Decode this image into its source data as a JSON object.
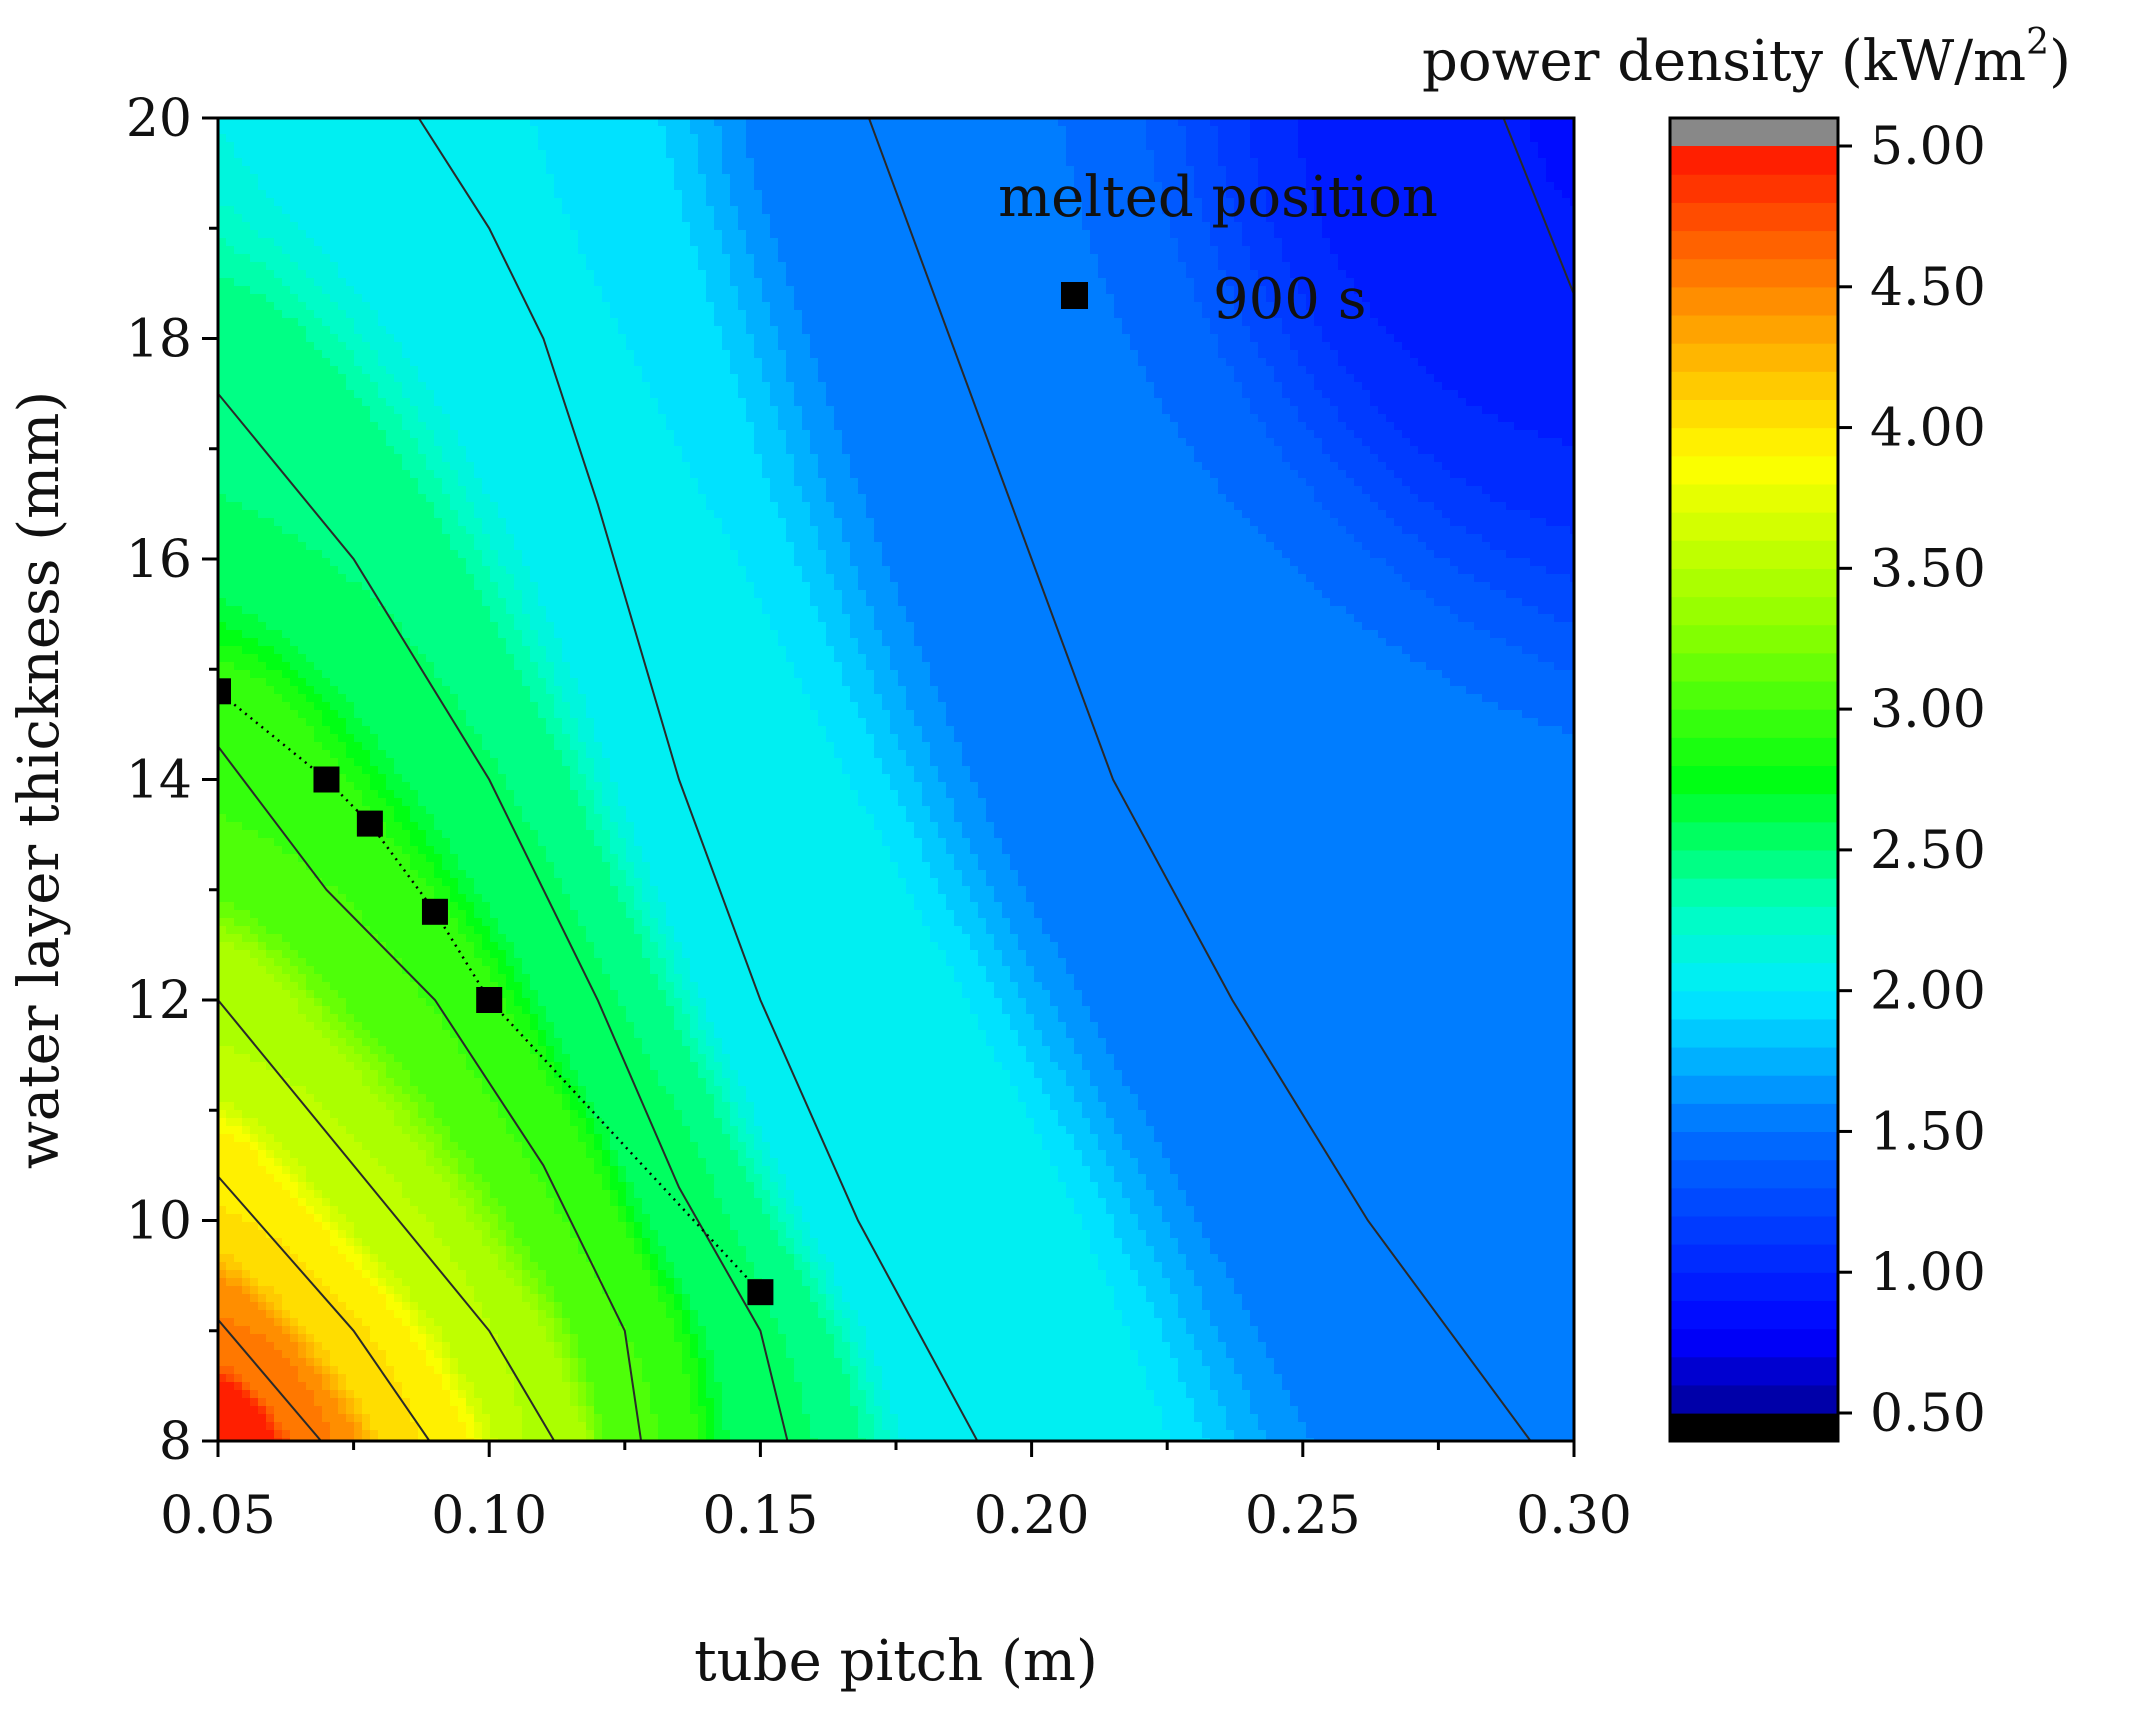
{
  "chart_data": {
    "type": "heatmap",
    "subtype": "filled-contour",
    "xlabel": "tube pitch (m)",
    "ylabel": "water layer thickness (mm)",
    "xlim": [
      0.05,
      0.3
    ],
    "ylim": [
      8,
      20
    ],
    "x_ticks": [
      0.05,
      0.1,
      0.15,
      0.2,
      0.25,
      0.3
    ],
    "x_tick_labels": [
      "0.05",
      "0.10",
      "0.15",
      "0.20",
      "0.25",
      "0.30"
    ],
    "y_ticks": [
      8,
      10,
      12,
      14,
      16,
      18,
      20
    ],
    "y_tick_labels": [
      "8",
      "10",
      "12",
      "14",
      "16",
      "18",
      "20"
    ],
    "grid": false,
    "colorbar": {
      "title": "power density (kW/m",
      "title_sup": "2",
      "title_end": ")",
      "range": [
        0.5,
        5.0
      ],
      "ticks": [
        0.5,
        1.0,
        1.5,
        2.0,
        2.5,
        3.0,
        3.5,
        4.0,
        4.5,
        5.0
      ],
      "tick_labels": [
        "0.50",
        "1.00",
        "1.50",
        "2.00",
        "2.50",
        "3.00",
        "3.50",
        "4.00",
        "4.50",
        "5.00"
      ],
      "levels": 45,
      "under_color": "#000000",
      "over_color": "#888888"
    },
    "contour_lines": [
      {
        "level": 1.0,
        "points": [
          [
            0.287,
            20
          ],
          [
            0.3,
            18.4
          ]
        ]
      },
      {
        "level": 1.5,
        "points": [
          [
            0.17,
            20
          ],
          [
            0.185,
            18.0
          ],
          [
            0.2,
            16.0
          ],
          [
            0.215,
            14.0
          ],
          [
            0.237,
            12.0
          ],
          [
            0.262,
            10.0
          ],
          [
            0.292,
            8.0
          ]
        ]
      },
      {
        "level": 2.0,
        "points": [
          [
            0.087,
            20
          ],
          [
            0.1,
            19.0
          ],
          [
            0.11,
            18.0
          ],
          [
            0.12,
            16.5
          ],
          [
            0.135,
            14.0
          ],
          [
            0.15,
            12.0
          ],
          [
            0.168,
            10.0
          ],
          [
            0.19,
            8.0
          ]
        ]
      },
      {
        "level": 2.5,
        "points": [
          [
            0.05,
            17.5
          ],
          [
            0.075,
            16.0
          ],
          [
            0.1,
            14.0
          ],
          [
            0.12,
            12.0
          ],
          [
            0.135,
            10.3
          ],
          [
            0.15,
            9.0
          ],
          [
            0.155,
            8.0
          ]
        ]
      },
      {
        "level": 3.0,
        "points": [
          [
            0.05,
            14.3
          ],
          [
            0.07,
            13.0
          ],
          [
            0.09,
            12.0
          ],
          [
            0.11,
            10.5
          ],
          [
            0.125,
            9.0
          ],
          [
            0.128,
            8.0
          ]
        ]
      },
      {
        "level": 3.5,
        "points": [
          [
            0.05,
            12.0
          ],
          [
            0.075,
            10.5
          ],
          [
            0.1,
            9.0
          ],
          [
            0.112,
            8.0
          ]
        ]
      },
      {
        "level": 4.0,
        "points": [
          [
            0.05,
            10.4
          ],
          [
            0.075,
            9.0
          ],
          [
            0.089,
            8.0
          ]
        ]
      },
      {
        "level": 4.5,
        "points": [
          [
            0.05,
            9.1
          ],
          [
            0.069,
            8.0
          ]
        ]
      }
    ],
    "field_anchors": [
      {
        "level": 5.0,
        "points": [
          [
            0.05,
            8.0
          ],
          [
            0.055,
            8.0
          ],
          [
            0.05,
            8.3
          ]
        ]
      },
      {
        "level": 0.85,
        "points": [
          [
            0.3,
            20.0
          ],
          [
            0.3,
            19.5
          ],
          [
            0.295,
            20.0
          ]
        ]
      }
    ],
    "series": [
      {
        "name": "900 s",
        "type": "scatter",
        "marker": "square",
        "connect": "dotted",
        "x": [
          0.05,
          0.07,
          0.078,
          0.09,
          0.1,
          0.15
        ],
        "y": [
          14.8,
          14.0,
          13.6,
          12.8,
          12.0,
          9.35
        ]
      }
    ],
    "legend": {
      "title": "melted position",
      "entries": [
        "900 s"
      ],
      "position": "top-right"
    }
  }
}
